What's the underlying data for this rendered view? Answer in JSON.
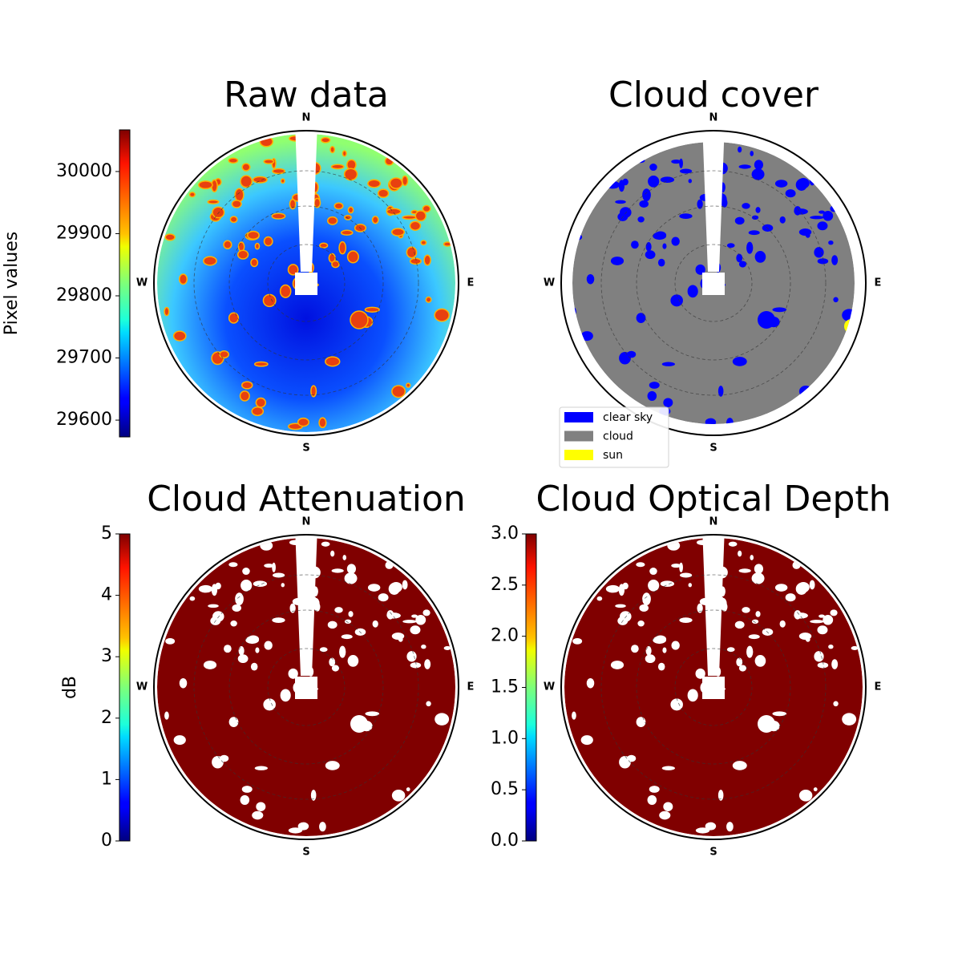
{
  "chart_data": [
    {
      "type": "polar-image",
      "title": "Raw data",
      "directions": [
        "N",
        "E",
        "S",
        "W"
      ],
      "colorbar": {
        "label": "Pixel values",
        "colormap": "jet",
        "ylim": [
          29573,
          30067
        ],
        "yticks": [
          29600,
          29700,
          29800,
          29900,
          30000
        ]
      }
    },
    {
      "type": "polar-image",
      "title": "Cloud cover",
      "directions": [
        "N",
        "E",
        "S",
        "W"
      ],
      "classes": [
        {
          "name": "clear sky",
          "color": "#0000ff"
        },
        {
          "name": "cloud",
          "color": "#808080"
        },
        {
          "name": "sun",
          "color": "#ffff00"
        }
      ],
      "legend_position": "lower left"
    },
    {
      "type": "polar-image",
      "title": "Cloud Attenuation",
      "directions": [
        "N",
        "E",
        "S",
        "W"
      ],
      "colorbar": {
        "label": "dB",
        "colormap": "jet",
        "ylim": [
          0,
          5
        ],
        "yticks": [
          0,
          1,
          2,
          3,
          4,
          5
        ]
      }
    },
    {
      "type": "polar-image",
      "title": "Cloud Optical Depth",
      "directions": [
        "N",
        "E",
        "S",
        "W"
      ],
      "colorbar": {
        "colormap": "jet",
        "ylim": [
          0,
          3
        ],
        "yticks": [
          {
            "value": 0,
            "label": "0.0"
          },
          {
            "value": 0.5,
            "label": "0.5"
          },
          {
            "value": 1,
            "label": "1.0"
          },
          {
            "value": 1.5,
            "label": "1.5"
          },
          {
            "value": 2,
            "label": "2.0"
          },
          {
            "value": 2.5,
            "label": "2.5"
          },
          {
            "value": 3,
            "label": "3.0"
          }
        ]
      }
    }
  ]
}
